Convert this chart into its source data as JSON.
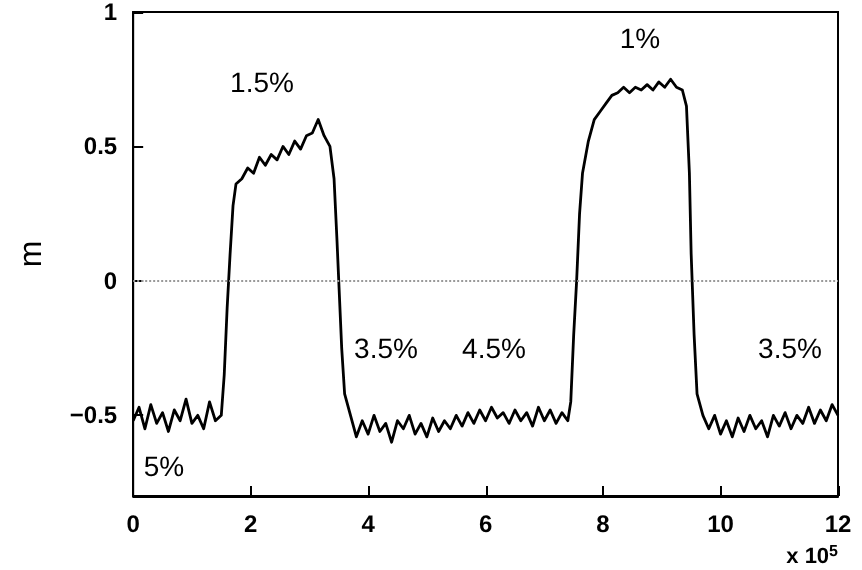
{
  "chart_data": {
    "type": "line",
    "ylabel": "m",
    "x": [
      0,
      0.1,
      0.2,
      0.3,
      0.4,
      0.5,
      0.6,
      0.7,
      0.8,
      0.9,
      1.0,
      1.1,
      1.2,
      1.3,
      1.4,
      1.5,
      1.55,
      1.6,
      1.65,
      1.7,
      1.75,
      1.85,
      1.95,
      2.05,
      2.15,
      2.25,
      2.35,
      2.45,
      2.55,
      2.65,
      2.75,
      2.85,
      2.95,
      3.05,
      3.15,
      3.25,
      3.35,
      3.42,
      3.47,
      3.5,
      3.55,
      3.6,
      3.7,
      3.8,
      3.9,
      4.0,
      4.1,
      4.2,
      4.3,
      4.4,
      4.5,
      4.6,
      4.7,
      4.8,
      4.9,
      5.0,
      5.1,
      5.2,
      5.3,
      5.4,
      5.5,
      5.6,
      5.7,
      5.8,
      5.9,
      6.0,
      6.1,
      6.2,
      6.3,
      6.4,
      6.5,
      6.6,
      6.7,
      6.8,
      6.9,
      7.0,
      7.1,
      7.2,
      7.3,
      7.4,
      7.45,
      7.5,
      7.55,
      7.6,
      7.65,
      7.75,
      7.85,
      7.95,
      8.05,
      8.15,
      8.25,
      8.35,
      8.45,
      8.55,
      8.65,
      8.75,
      8.85,
      8.95,
      9.05,
      9.15,
      9.25,
      9.35,
      9.42,
      9.47,
      9.5,
      9.55,
      9.6,
      9.7,
      9.8,
      9.9,
      10.0,
      10.1,
      10.2,
      10.3,
      10.4,
      10.5,
      10.6,
      10.7,
      10.8,
      10.9,
      11.0,
      11.1,
      11.2,
      11.3,
      11.4,
      11.5,
      11.6,
      11.7,
      11.8,
      11.9,
      12.0
    ],
    "series": [
      {
        "color": "#000000",
        "values": [
          -0.52,
          -0.47,
          -0.55,
          -0.46,
          -0.53,
          -0.49,
          -0.56,
          -0.48,
          -0.52,
          -0.44,
          -0.53,
          -0.5,
          -0.55,
          -0.45,
          -0.52,
          -0.5,
          -0.35,
          -0.1,
          0.1,
          0.28,
          0.36,
          0.38,
          0.42,
          0.4,
          0.46,
          0.43,
          0.47,
          0.45,
          0.5,
          0.47,
          0.52,
          0.49,
          0.54,
          0.55,
          0.6,
          0.54,
          0.5,
          0.38,
          0.15,
          0,
          -0.25,
          -0.42,
          -0.5,
          -0.58,
          -0.52,
          -0.57,
          -0.5,
          -0.56,
          -0.53,
          -0.6,
          -0.52,
          -0.55,
          -0.5,
          -0.57,
          -0.53,
          -0.58,
          -0.51,
          -0.56,
          -0.52,
          -0.55,
          -0.5,
          -0.54,
          -0.49,
          -0.53,
          -0.48,
          -0.52,
          -0.47,
          -0.51,
          -0.49,
          -0.53,
          -0.48,
          -0.52,
          -0.49,
          -0.54,
          -0.47,
          -0.52,
          -0.48,
          -0.53,
          -0.49,
          -0.52,
          -0.45,
          -0.2,
          0,
          0.25,
          0.4,
          0.52,
          0.6,
          0.63,
          0.66,
          0.69,
          0.7,
          0.72,
          0.7,
          0.72,
          0.71,
          0.73,
          0.71,
          0.74,
          0.72,
          0.75,
          0.72,
          0.71,
          0.65,
          0.4,
          0.1,
          -0.2,
          -0.42,
          -0.5,
          -0.55,
          -0.5,
          -0.57,
          -0.52,
          -0.58,
          -0.51,
          -0.56,
          -0.5,
          -0.55,
          -0.52,
          -0.58,
          -0.5,
          -0.54,
          -0.49,
          -0.55,
          -0.5,
          -0.53,
          -0.47,
          -0.53,
          -0.48,
          -0.52,
          -0.46,
          -0.5
        ]
      }
    ],
    "xlim": [
      0,
      12
    ],
    "xticks": [
      0,
      2,
      4,
      6,
      8,
      10,
      12
    ],
    "ylim": [
      -0.8,
      1
    ],
    "yticks": [
      {
        "value": -0.5,
        "label": "−0.5"
      },
      0,
      0.5,
      1
    ],
    "ref_lines": [
      {
        "axis": "y",
        "value": 0,
        "color": "#999999",
        "line_style": "dotted"
      }
    ],
    "annotations": [
      "1.5%",
      "3.5%",
      "4.5%",
      "1%",
      "3.5%",
      "5%",
      "x 10$^{5}$"
    ],
    "grid": false,
    "marker": "none",
    "line_style": "solid"
  }
}
